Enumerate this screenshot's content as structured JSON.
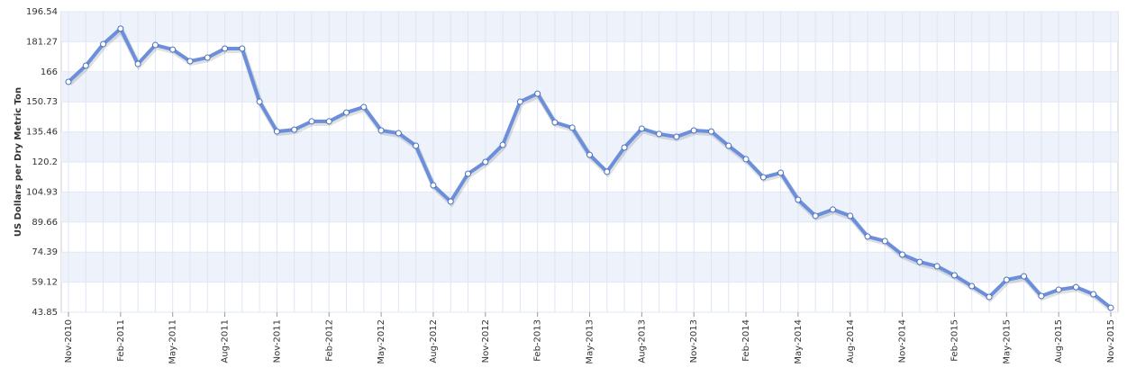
{
  "chart_data": {
    "type": "line",
    "y_label": "US Dollars per Dry Metric Ton",
    "categories": [
      "Nov-2010",
      null,
      null,
      "Feb-2011",
      null,
      null,
      "May-2011",
      null,
      null,
      "Aug-2011",
      null,
      null,
      "Nov-2011",
      null,
      null,
      "Feb-2012",
      null,
      null,
      "May-2012",
      null,
      null,
      "Aug-2012",
      null,
      null,
      "Nov-2012",
      null,
      null,
      "Feb-2013",
      null,
      null,
      "May-2013",
      null,
      null,
      "Aug-2013",
      null,
      null,
      "Nov-2013",
      null,
      null,
      "Feb-2014",
      null,
      null,
      "May-2014",
      null,
      null,
      "Aug-2014",
      null,
      null,
      "Nov-2014",
      null,
      null,
      "Feb-2015",
      null,
      null,
      "May-2015",
      null,
      null,
      "Aug-2015",
      null,
      null,
      "Nov-2015"
    ],
    "values": [
      160.9,
      169.1,
      180.1,
      187.9,
      170.0,
      179.6,
      177.3,
      171.4,
      173.2,
      177.8,
      177.8,
      150.8,
      135.7,
      136.6,
      140.8,
      140.8,
      145.3,
      148.1,
      136.2,
      134.8,
      128.4,
      108.3,
      100.1,
      114.2,
      120.2,
      128.9,
      150.8,
      154.9,
      140.3,
      137.6,
      123.8,
      115.2,
      127.5,
      137.1,
      134.4,
      133.0,
      136.2,
      135.7,
      128.4,
      121.6,
      112.4,
      114.7,
      101.0,
      92.8,
      96.0,
      92.8,
      82.3,
      80.0,
      73.1,
      69.4,
      67.2,
      62.6,
      57.1,
      51.6,
      60.3,
      62.1,
      52.1,
      55.3,
      56.6,
      53.0,
      46.1
    ],
    "color": "#6b8fdb",
    "ylim": [
      43.85,
      196.54
    ],
    "yticks": [
      43.85,
      59.12,
      74.39,
      89.66,
      104.93,
      120.2,
      135.46,
      150.73,
      166,
      181.27,
      196.54
    ],
    "grid": true
  }
}
